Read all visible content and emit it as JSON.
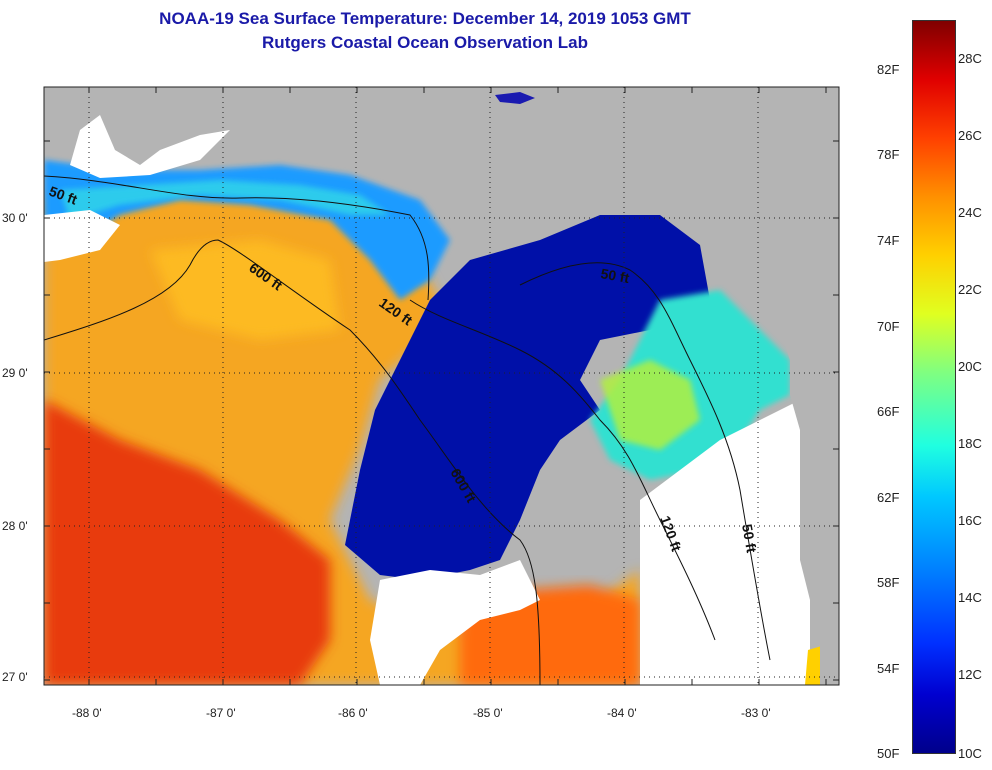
{
  "title": {
    "line1": "NOAA-19 Sea Surface Temperature:  December 14, 2019 1053 GMT",
    "line2": "Rutgers Coastal Ocean Observation Lab"
  },
  "map": {
    "lat_labels": [
      "30 0'",
      "29 0'",
      "28 0'",
      "27 0'"
    ],
    "lon_labels": [
      "-88 0'",
      "-87 0'",
      "-86 0'",
      "-85 0'",
      "-84 0'",
      "-83 0'"
    ],
    "depth_contours": [
      "50 ft",
      "600 ft",
      "120 ft",
      "50 ft",
      "600 ft",
      "120 ft",
      "50 ft"
    ],
    "colors": {
      "land": "#b4b4b4",
      "cloud": "#ffffff",
      "warm": "#ff8c00",
      "cold": "#0000b4"
    }
  },
  "colorbar": {
    "fahrenheit": [
      "82F",
      "78F",
      "74F",
      "70F",
      "66F",
      "62F",
      "58F",
      "54F",
      "50F"
    ],
    "celsius": [
      "28C",
      "26C",
      "24C",
      "22C",
      "20C",
      "18C",
      "16C",
      "14C",
      "12C",
      "10C"
    ],
    "range_celsius": [
      10,
      29
    ]
  }
}
